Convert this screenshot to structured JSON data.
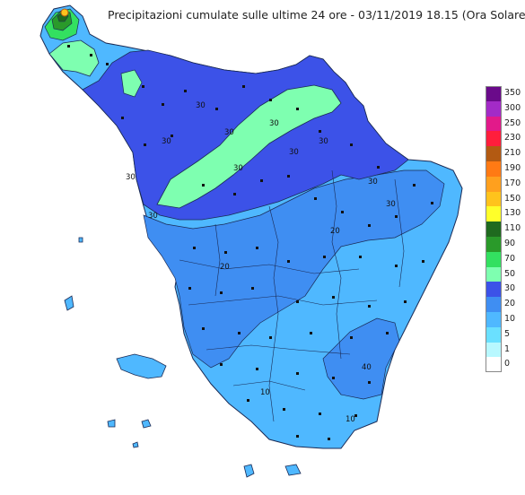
{
  "title": "Precipitazioni cumulate sulle ultime 24 ore - 03/11/2019 18.15 (Ora Solare)",
  "legend": {
    "bands": [
      {
        "label": "350",
        "color": "#6a0a8a"
      },
      {
        "label": "300",
        "color": "#a32bc7"
      },
      {
        "label": "250",
        "color": "#e21a8a"
      },
      {
        "label": "230",
        "color": "#ff1e3c"
      },
      {
        "label": "210",
        "color": "#b35a12"
      },
      {
        "label": "190",
        "color": "#ff7a14"
      },
      {
        "label": "170",
        "color": "#ffa01e"
      },
      {
        "label": "150",
        "color": "#ffc31c"
      },
      {
        "label": "130",
        "color": "#ffff2a"
      },
      {
        "label": "110",
        "color": "#1f6a1f"
      },
      {
        "label": "90",
        "color": "#2a9a2a"
      },
      {
        "label": "70",
        "color": "#33e060"
      },
      {
        "label": "50",
        "color": "#7effb0"
      },
      {
        "label": "30",
        "color": "#3c52e8"
      },
      {
        "label": "20",
        "color": "#3f8ef2"
      },
      {
        "label": "10",
        "color": "#4fb8ff"
      },
      {
        "label": "5",
        "color": "#6ae0ff"
      },
      {
        "label": "1",
        "color": "#b8f8ff"
      },
      {
        "label": "0",
        "color": "#ffffff"
      }
    ]
  },
  "contour_labels": [
    "30",
    "30",
    "30",
    "30",
    "20",
    "30",
    "30",
    "20",
    "10",
    "30",
    "10",
    "30",
    "30",
    "30",
    "30",
    "40"
  ]
}
